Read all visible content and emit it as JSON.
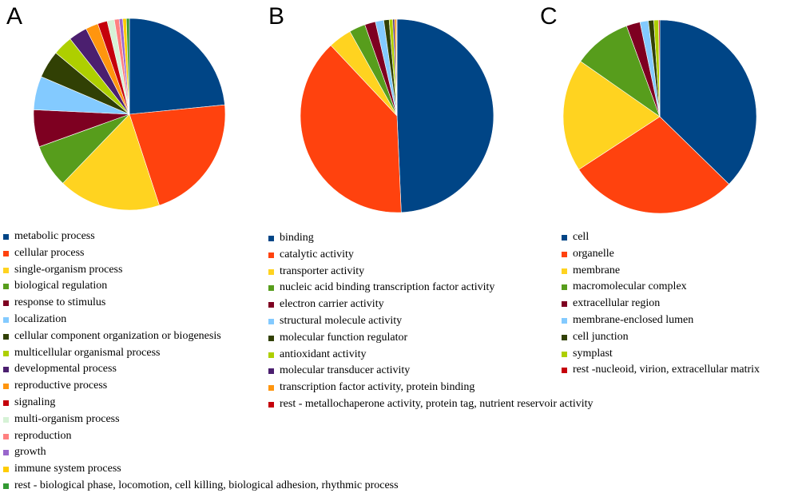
{
  "panels": [
    {
      "letter": "A"
    },
    {
      "letter": "B"
    },
    {
      "letter": "C"
    }
  ],
  "chart_data": [
    {
      "type": "pie",
      "panel": "A",
      "categories": [
        "metabolic process",
        "cellular process",
        "single-organism process",
        "biological regulation",
        "response to stimulus",
        "localization",
        "cellular component organization or biogenesis",
        "multicellular organismal process",
        "developmental process",
        "reproductive process",
        "signaling",
        "multi-organism process",
        "reproduction",
        "growth",
        "immune system process",
        "rest - biological phase, locomotion, cell killing, biological adhesion, rhythmic process"
      ],
      "values": [
        23.2,
        21.3,
        17.1,
        7.2,
        6.2,
        5.6,
        4.6,
        3.3,
        3.1,
        2.1,
        1.6,
        1.2,
        0.8,
        0.6,
        0.6,
        0.5
      ],
      "colors": [
        "#004586",
        "#ff420e",
        "#ffd320",
        "#579d1c",
        "#7e0021",
        "#83caff",
        "#314004",
        "#aecf00",
        "#4b1f6f",
        "#ff950e",
        "#c5000b",
        "#d6f2d6",
        "#ff8080",
        "#9966cc",
        "#ffcc00",
        "#339933"
      ]
    },
    {
      "type": "pie",
      "panel": "B",
      "categories": [
        "binding",
        "catalytic activity",
        "transporter activity",
        "nucleic acid binding transcription factor activity",
        "electron carrier activity",
        "structural molecule activity",
        "molecular function regulator",
        "antioxidant activity",
        "molecular transducer activity",
        "transcription factor activity, protein binding",
        "rest - metallochaperone activity, protein tag, nutrient reservoir activity"
      ],
      "values": [
        49.3,
        38.7,
        3.9,
        2.7,
        1.8,
        1.4,
        0.9,
        0.6,
        0.3,
        0.3,
        0.1
      ],
      "colors": [
        "#004586",
        "#ff420e",
        "#ffd320",
        "#579d1c",
        "#7e0021",
        "#83caff",
        "#314004",
        "#aecf00",
        "#4b1f6f",
        "#ff950e",
        "#c5000b"
      ]
    },
    {
      "type": "pie",
      "panel": "C",
      "categories": [
        "cell",
        "organelle",
        "membrane",
        "macromolecular complex",
        "extracellular region",
        "membrane-enclosed lumen",
        "cell junction",
        "symplast",
        "rest -nucleoid, virion, extracellular matrix"
      ],
      "values": [
        37.3,
        28.5,
        18.9,
        9.7,
        2.3,
        1.4,
        0.9,
        0.8,
        0.2
      ],
      "colors": [
        "#004586",
        "#ff420e",
        "#ffd320",
        "#579d1c",
        "#7e0021",
        "#83caff",
        "#314004",
        "#aecf00",
        "#c5000b"
      ]
    }
  ]
}
